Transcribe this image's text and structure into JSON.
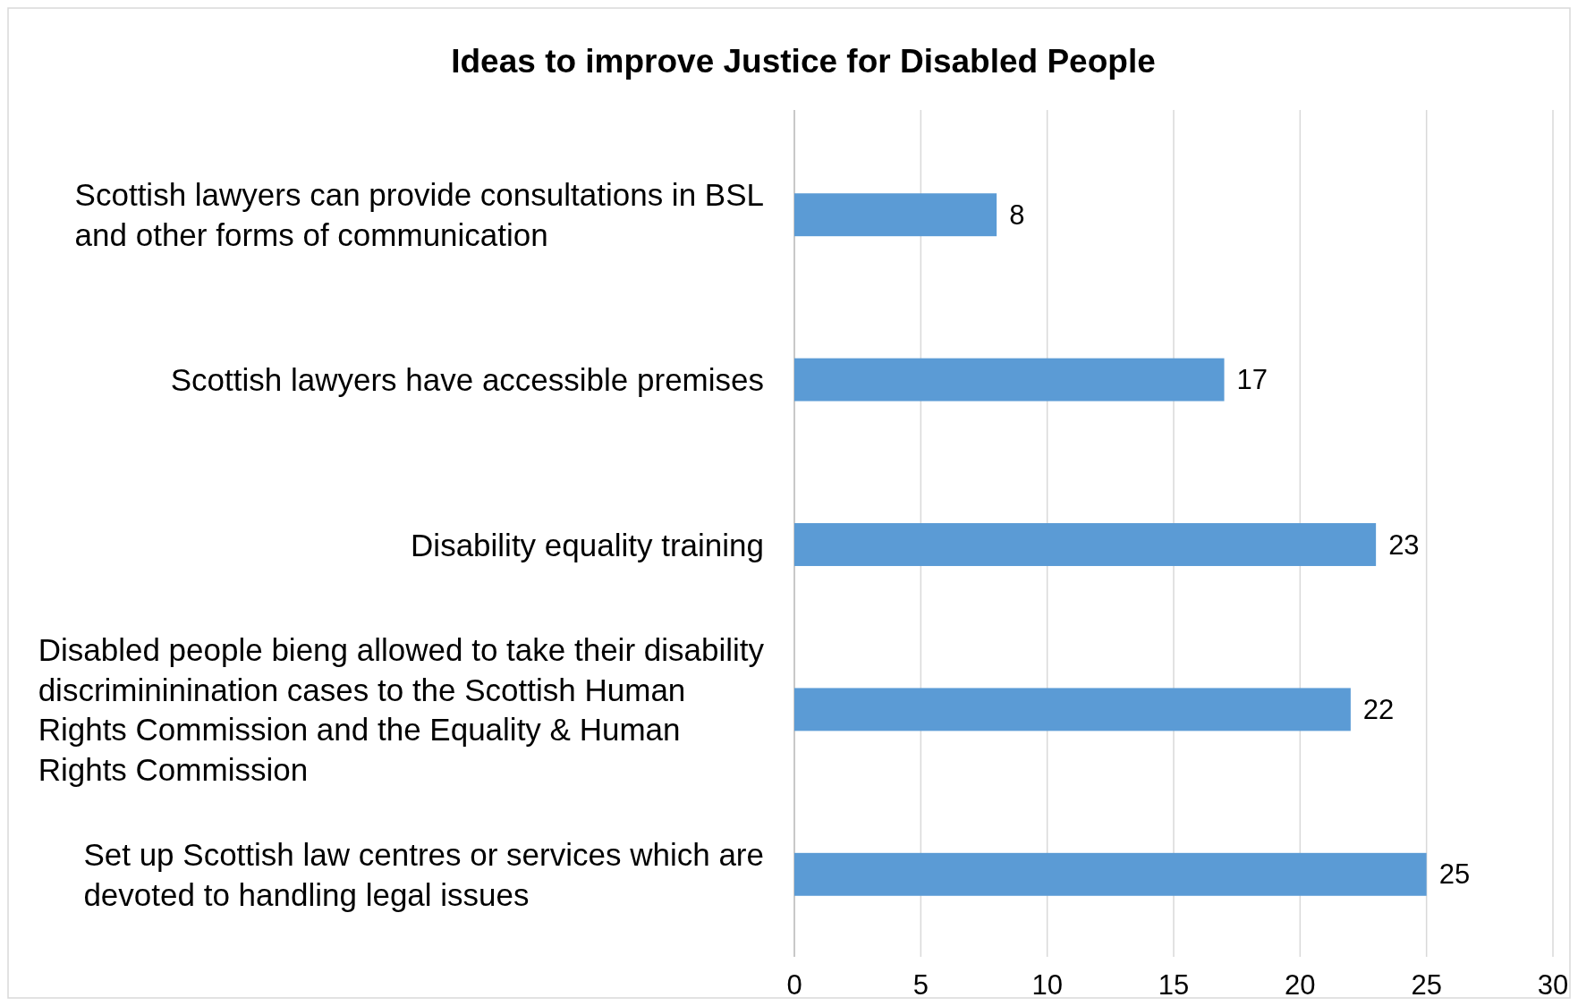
{
  "chart_data": {
    "type": "bar",
    "orientation": "horizontal",
    "title": "Ideas to improve Justice for Disabled People",
    "categories": [
      "Scottish lawyers can provide consultations in BSL and other forms of communication",
      "Scottish lawyers have accessible premises",
      "Disability equality training",
      "Disabled people bieng allowed to take their disability discrimininination cases to the Scottish Human Rights Commission and the Equality & Human Rights Commission",
      "Set up Scottish law centres or services which are devoted to handling legal issues"
    ],
    "values": [
      8,
      17,
      23,
      22,
      25
    ],
    "color": "#5b9bd5",
    "xlim": [
      0,
      30
    ],
    "xticks": [
      0,
      5,
      10,
      15,
      20,
      25,
      30
    ],
    "grid": "x",
    "data_labels": true
  }
}
